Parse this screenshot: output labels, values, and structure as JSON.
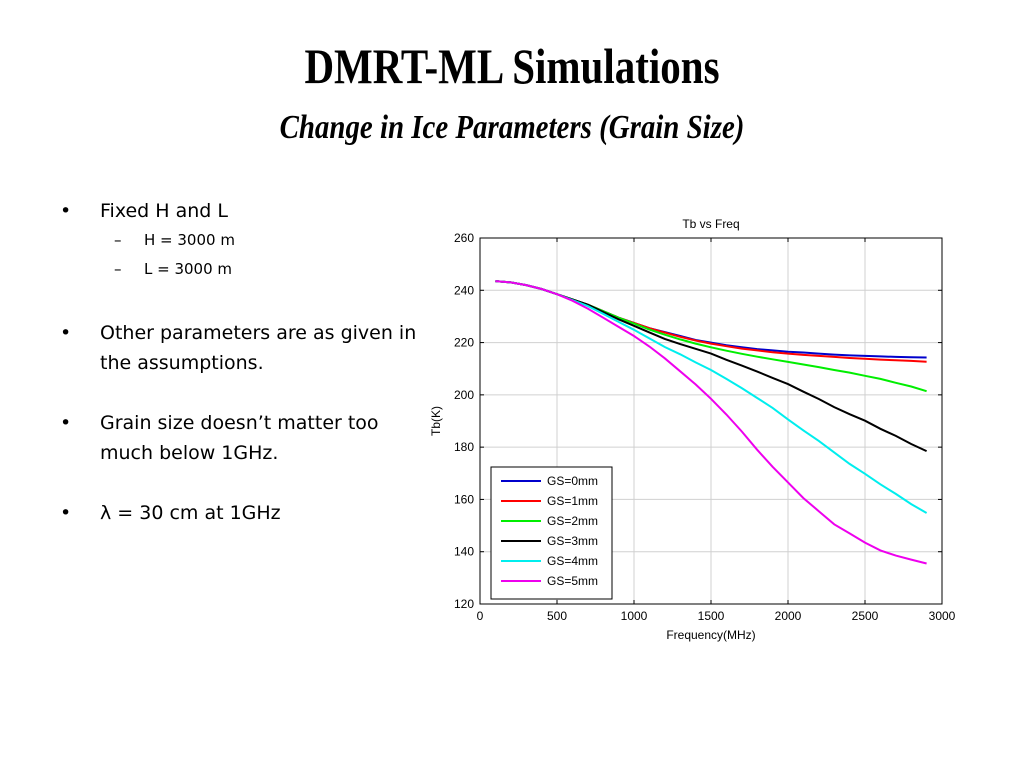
{
  "slide": {
    "title": "DMRT-ML Simulations",
    "subtitle": "Change in Ice Parameters (Grain Size)"
  },
  "bullets": [
    {
      "text": "Fixed H and L",
      "sub": [
        "H = 3000 m",
        "L = 3000 m"
      ]
    },
    {
      "text": "Other parameters are as given in the assumptions.",
      "sub": []
    },
    {
      "text": "Grain size doesn’t matter too much below 1GHz.",
      "sub": []
    },
    {
      "text": "λ = 30 cm at 1GHz",
      "sub": []
    }
  ],
  "chart_data": {
    "type": "line",
    "title": "Tb vs Freq",
    "xlabel": "Frequency(MHz)",
    "ylabel": "Tb(K)",
    "xlim": [
      0,
      3000
    ],
    "ylim": [
      120,
      260
    ],
    "xticks": [
      0,
      500,
      1000,
      1500,
      2000,
      2500,
      3000
    ],
    "yticks": [
      120,
      140,
      160,
      180,
      200,
      220,
      240,
      260
    ],
    "grid": true,
    "legend_position": "bottom-left",
    "x": [
      100,
      200,
      300,
      400,
      500,
      600,
      700,
      800,
      900,
      1000,
      1100,
      1200,
      1300,
      1400,
      1500,
      1600,
      1700,
      1800,
      1900,
      2000,
      2100,
      2200,
      2300,
      2400,
      2500,
      2600,
      2700,
      2800,
      2900
    ],
    "series": [
      {
        "name": "GS=0mm",
        "color": "#0000cc",
        "values": [
          243.5,
          243.0,
          242.0,
          240.5,
          238.5,
          236.5,
          234.5,
          232.0,
          229.5,
          227.5,
          225.5,
          224.0,
          222.5,
          221.0,
          220.0,
          219.0,
          218.2,
          217.5,
          217.0,
          216.5,
          216.2,
          215.8,
          215.4,
          215.1,
          214.9,
          214.7,
          214.5,
          214.4,
          214.3
        ]
      },
      {
        "name": "GS=1mm",
        "color": "#ff0000",
        "values": [
          243.5,
          243.0,
          242.0,
          240.5,
          238.5,
          236.5,
          234.5,
          232.0,
          229.5,
          227.5,
          225.5,
          223.8,
          222.2,
          220.8,
          219.6,
          218.6,
          217.7,
          217.0,
          216.3,
          215.8,
          215.3,
          214.9,
          214.5,
          214.1,
          213.8,
          213.5,
          213.2,
          213.0,
          212.7
        ]
      },
      {
        "name": "GS=2mm",
        "color": "#00ee00",
        "values": [
          243.5,
          243.0,
          242.0,
          240.5,
          238.5,
          236.5,
          234.5,
          232.0,
          229.5,
          227.3,
          225.0,
          223.0,
          221.2,
          219.6,
          218.2,
          216.9,
          215.7,
          214.6,
          213.6,
          212.6,
          211.6,
          210.6,
          209.5,
          208.5,
          207.3,
          206.1,
          204.6,
          203.2,
          201.4
        ]
      },
      {
        "name": "GS=3mm",
        "color": "#000000",
        "values": [
          243.5,
          243.0,
          242.0,
          240.5,
          238.5,
          236.5,
          234.5,
          231.7,
          228.9,
          226.4,
          223.9,
          221.4,
          219.4,
          217.6,
          215.8,
          213.4,
          211.2,
          208.9,
          206.5,
          204.1,
          201.2,
          198.4,
          195.3,
          192.6,
          190.1,
          187.0,
          184.3,
          181.2,
          178.5
        ]
      },
      {
        "name": "GS=4mm",
        "color": "#00eeee",
        "values": [
          243.5,
          243.0,
          242.0,
          240.5,
          238.5,
          236.3,
          234.0,
          231.0,
          227.9,
          224.9,
          221.6,
          218.3,
          215.5,
          212.4,
          209.5,
          206.1,
          202.6,
          198.8,
          195.0,
          190.6,
          186.4,
          182.4,
          178.0,
          173.6,
          169.8,
          165.8,
          162.1,
          158.2,
          154.8
        ]
      },
      {
        "name": "GS=5mm",
        "color": "#ee00ee",
        "values": [
          243.5,
          243.0,
          242.0,
          240.5,
          238.5,
          236.0,
          233.0,
          229.5,
          226.0,
          222.5,
          218.5,
          214.0,
          209.0,
          204.0,
          198.5,
          192.5,
          186.0,
          179.0,
          172.5,
          166.5,
          160.5,
          155.5,
          150.5,
          147.0,
          143.5,
          140.5,
          138.5,
          137.0,
          135.5
        ]
      }
    ]
  }
}
